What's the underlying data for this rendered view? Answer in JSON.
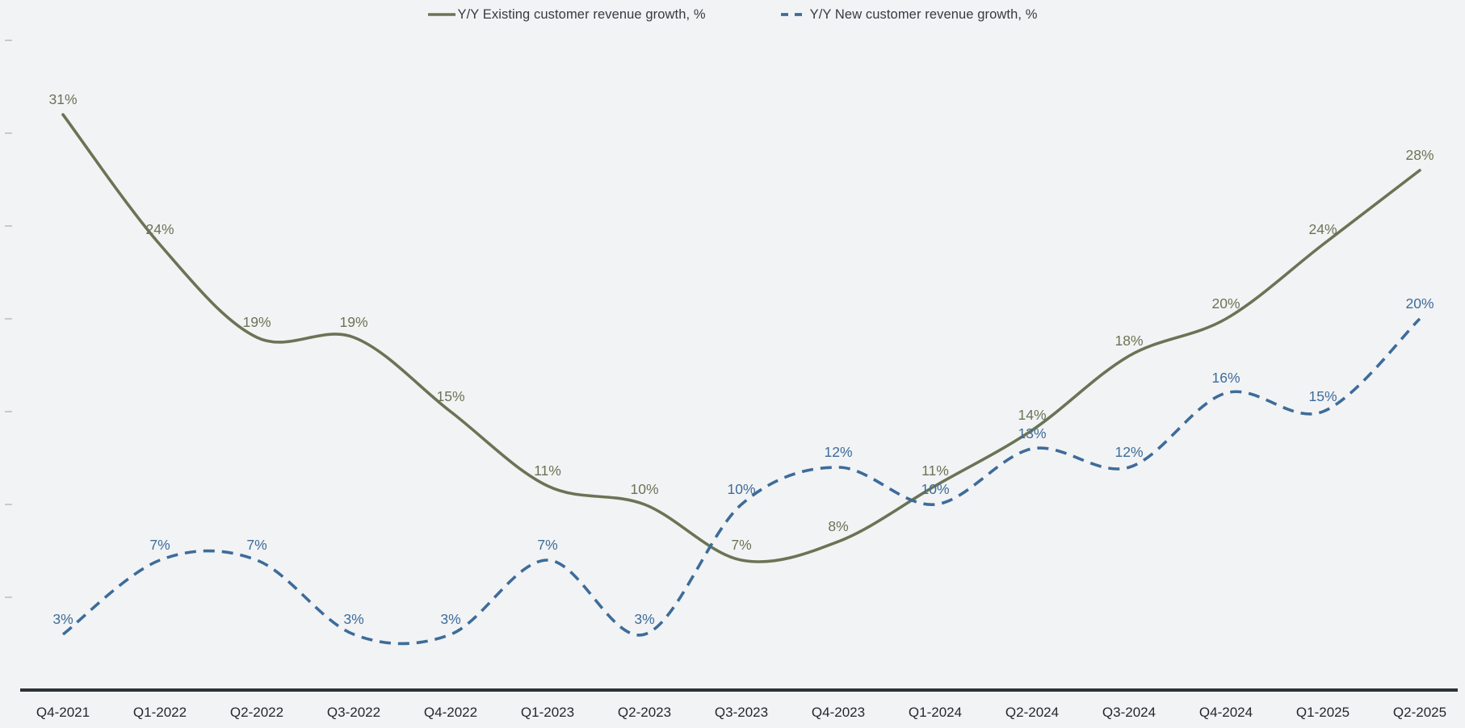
{
  "page": {
    "background": "#f2f3f5",
    "legend_text_color": "#363b40"
  },
  "chart_data": {
    "type": "line",
    "title": "",
    "xlabel": "",
    "ylabel": "",
    "value_suffix": "%",
    "grid": false,
    "legend_position": "top-center",
    "ylim": [
      0,
      38
    ],
    "y_axis_ticks": [
      5,
      10,
      15,
      20,
      25,
      30,
      35
    ],
    "y_axis_tick_labels_visible": false,
    "categories": [
      "Q4-2021",
      "Q1-2022",
      "Q2-2022",
      "Q3-2022",
      "Q4-2022",
      "Q1-2023",
      "Q2-2023",
      "Q3-2023",
      "Q4-2023",
      "Q1-2024",
      "Q2-2024",
      "Q3-2024",
      "Q4-2024",
      "Q1-2025",
      "Q2-2025"
    ],
    "series": [
      {
        "name": "Y/Y Existing customer revenue growth, %",
        "style": "solid",
        "color": "#6a7455",
        "values": [
          31,
          24,
          19,
          19,
          15,
          11,
          10,
          7,
          8,
          11,
          14,
          18,
          20,
          24,
          28
        ],
        "labels": [
          "31%",
          "24%",
          "19%",
          "19%",
          "15%",
          "11%",
          "10%",
          "7%",
          "8%",
          "11%",
          "14%",
          "18%",
          "20%",
          "24%",
          "28%"
        ]
      },
      {
        "name": "Y/Y New customer revenue growth, %",
        "style": "dashed",
        "color": "#3d6c99",
        "values": [
          3,
          7,
          7,
          3,
          3,
          7,
          3,
          10,
          12,
          10,
          13,
          12,
          16,
          15,
          20
        ],
        "labels": [
          "3%",
          "7%",
          "7%",
          "3%",
          "3%",
          "7%",
          "3%",
          "10%",
          "12%",
          "10%",
          "13%",
          "12%",
          "16%",
          "15%",
          "20%"
        ]
      }
    ],
    "axis": {
      "line_color": "#2d3236",
      "tick_color": "#c7cacd",
      "x_label_color": "#24272b"
    }
  }
}
